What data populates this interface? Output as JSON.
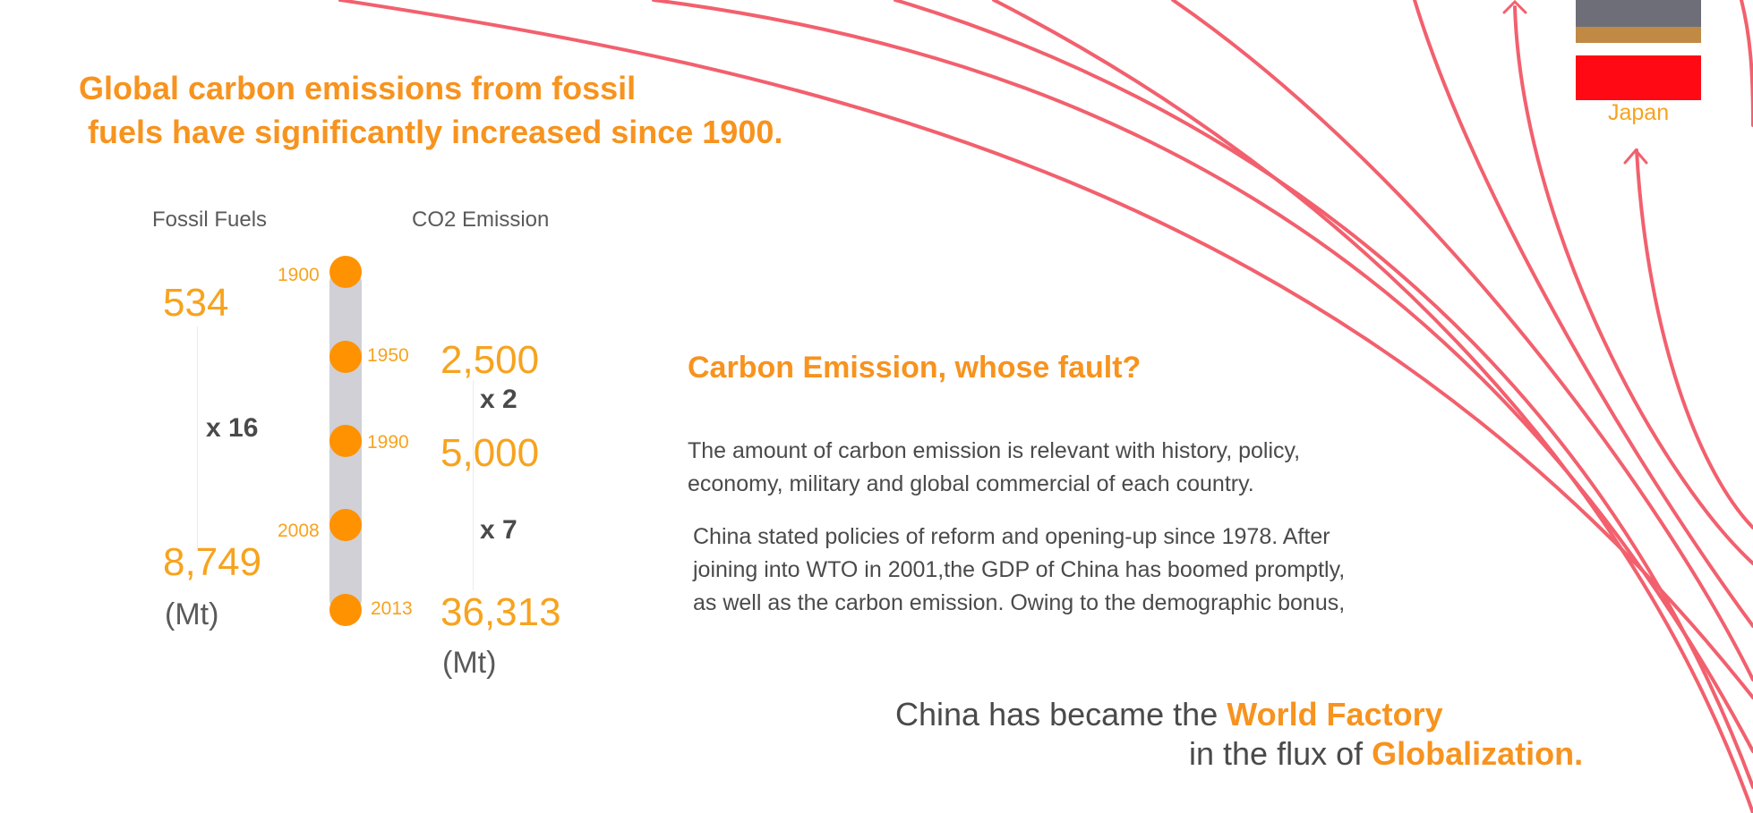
{
  "headline": {
    "line1": "Global carbon emissions from fossil",
    "line2": " fuels have significantly increased since 1900."
  },
  "timeline": {
    "fossil_label": "Fossil Fuels",
    "co2_label": "CO2 Emission",
    "years": [
      "1900",
      "1950",
      "1990",
      "2008",
      "2013"
    ],
    "fossil": {
      "start": "534",
      "end": "8,749",
      "unit": "(Mt)",
      "multiplier": "x 16"
    },
    "co2": {
      "v1950": "2,500",
      "v1990": "5,000",
      "v2013": "36,313",
      "unit": "(Mt)",
      "multiplier_1": "x 2",
      "multiplier_2": "x 7"
    }
  },
  "section": {
    "title": "Carbon Emission, whose fault?",
    "para1_line1": "The amount of carbon emission is relevant with history, policy,",
    "para1_line2": "economy, military and global commercial of each country.",
    "para2_line1": "China stated policies of reform and opening-up since 1978. After",
    "para2_line2": "joining into WTO in 2001,the GDP of China has boomed promptly,",
    "para2_line3": "as well as the carbon emission. Owing to the demographic bonus,"
  },
  "tagline": {
    "line1_prefix": "China has became the ",
    "line1_bold": "World Factory",
    "line2_prefix": "in the flux of ",
    "line2_bold": "Globalization."
  },
  "legend": {
    "japan_label": "Japan"
  },
  "colors": {
    "accent_orange": "#f7931e",
    "dot_orange": "#ff9200",
    "curve_red": "#f2606e",
    "flag_gray": "#6e6e78",
    "flag_tan": "#c08a45",
    "flag_red": "#ff0a14"
  }
}
